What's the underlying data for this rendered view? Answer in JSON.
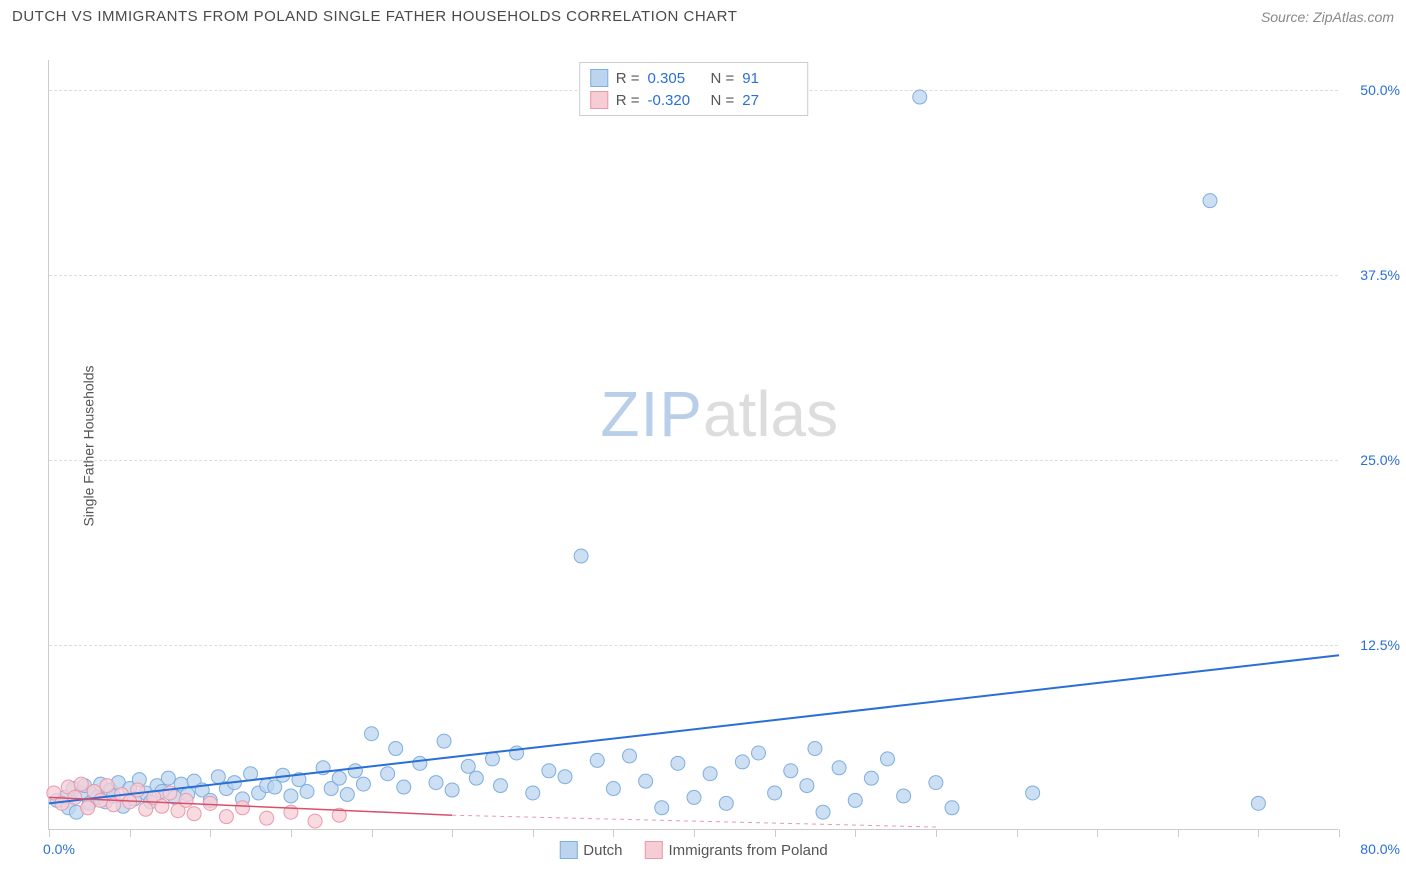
{
  "header": {
    "title": "DUTCH VS IMMIGRANTS FROM POLAND SINGLE FATHER HOUSEHOLDS CORRELATION CHART",
    "source": "Source: ZipAtlas.com"
  },
  "watermark": {
    "part1": "ZIP",
    "part2": "atlas"
  },
  "chart": {
    "type": "scatter",
    "ylabel": "Single Father Households",
    "background_color": "#ffffff",
    "grid_color": "#dddddd",
    "axis_color": "#cccccc",
    "xlim": [
      0,
      80
    ],
    "ylim": [
      0,
      52
    ],
    "x_axis": {
      "min_label": "0.0%",
      "max_label": "80.0%",
      "min_color": "#2a6fd6",
      "max_color": "#2a6fd6",
      "tick_positions": [
        0,
        5,
        10,
        15,
        20,
        25,
        30,
        35,
        40,
        45,
        50,
        55,
        60,
        65,
        70,
        75,
        80
      ]
    },
    "y_axis": {
      "ticks": [
        {
          "v": 12.5,
          "label": "12.5%",
          "color": "#2a6fd6"
        },
        {
          "v": 25.0,
          "label": "25.0%",
          "color": "#2a6fd6"
        },
        {
          "v": 37.5,
          "label": "37.5%",
          "color": "#2a6fd6"
        },
        {
          "v": 50.0,
          "label": "50.0%",
          "color": "#2a6fd6"
        }
      ]
    },
    "series": [
      {
        "name": "Dutch",
        "marker_fill": "#bcd4ee",
        "marker_stroke": "#7faee0",
        "marker_radius": 7,
        "marker_opacity": 0.75,
        "trend": {
          "x1": 0,
          "y1": 1.8,
          "x2": 80,
          "y2": 11.8,
          "color": "#2a6fd6",
          "width": 2,
          "dash": "none"
        },
        "R": "0.305",
        "N": "91",
        "points": [
          [
            0.5,
            2.0
          ],
          [
            1.0,
            2.2
          ],
          [
            1.2,
            1.5
          ],
          [
            1.5,
            2.8
          ],
          [
            1.7,
            1.2
          ],
          [
            2.0,
            2.5
          ],
          [
            2.2,
            3.0
          ],
          [
            2.5,
            1.8
          ],
          [
            2.8,
            2.6
          ],
          [
            3.0,
            2.2
          ],
          [
            3.2,
            3.1
          ],
          [
            3.5,
            1.9
          ],
          [
            3.8,
            2.7
          ],
          [
            4.0,
            2.3
          ],
          [
            4.3,
            3.2
          ],
          [
            4.6,
            1.6
          ],
          [
            5.0,
            2.8
          ],
          [
            5.3,
            2.1
          ],
          [
            5.6,
            3.4
          ],
          [
            6.0,
            2.5
          ],
          [
            6.3,
            1.9
          ],
          [
            6.7,
            3.0
          ],
          [
            7.0,
            2.6
          ],
          [
            7.4,
            3.5
          ],
          [
            7.8,
            2.2
          ],
          [
            8.2,
            3.1
          ],
          [
            8.6,
            2.4
          ],
          [
            9.0,
            3.3
          ],
          [
            9.5,
            2.7
          ],
          [
            10.0,
            2.0
          ],
          [
            10.5,
            3.6
          ],
          [
            11.0,
            2.8
          ],
          [
            11.5,
            3.2
          ],
          [
            12.0,
            2.1
          ],
          [
            12.5,
            3.8
          ],
          [
            13.0,
            2.5
          ],
          [
            13.5,
            3.0
          ],
          [
            14.0,
            2.9
          ],
          [
            14.5,
            3.7
          ],
          [
            15.0,
            2.3
          ],
          [
            15.5,
            3.4
          ],
          [
            16.0,
            2.6
          ],
          [
            17.0,
            4.2
          ],
          [
            17.5,
            2.8
          ],
          [
            18.0,
            3.5
          ],
          [
            18.5,
            2.4
          ],
          [
            19.0,
            4.0
          ],
          [
            19.5,
            3.1
          ],
          [
            20.0,
            6.5
          ],
          [
            21.0,
            3.8
          ],
          [
            21.5,
            5.5
          ],
          [
            22.0,
            2.9
          ],
          [
            23.0,
            4.5
          ],
          [
            24.0,
            3.2
          ],
          [
            24.5,
            6.0
          ],
          [
            25.0,
            2.7
          ],
          [
            26.0,
            4.3
          ],
          [
            26.5,
            3.5
          ],
          [
            27.5,
            4.8
          ],
          [
            28.0,
            3.0
          ],
          [
            29.0,
            5.2
          ],
          [
            30.0,
            2.5
          ],
          [
            31.0,
            4.0
          ],
          [
            32.0,
            3.6
          ],
          [
            33.0,
            18.5
          ],
          [
            34.0,
            4.7
          ],
          [
            35.0,
            2.8
          ],
          [
            36.0,
            5.0
          ],
          [
            37.0,
            3.3
          ],
          [
            38.0,
            1.5
          ],
          [
            39.0,
            4.5
          ],
          [
            40.0,
            2.2
          ],
          [
            41.0,
            3.8
          ],
          [
            42.0,
            1.8
          ],
          [
            43.0,
            4.6
          ],
          [
            44.0,
            5.2
          ],
          [
            45.0,
            2.5
          ],
          [
            46.0,
            4.0
          ],
          [
            47.0,
            3.0
          ],
          [
            47.5,
            5.5
          ],
          [
            48.0,
            1.2
          ],
          [
            49.0,
            4.2
          ],
          [
            50.0,
            2.0
          ],
          [
            51.0,
            3.5
          ],
          [
            52.0,
            4.8
          ],
          [
            53.0,
            2.3
          ],
          [
            54.0,
            49.5
          ],
          [
            55.0,
            3.2
          ],
          [
            56.0,
            1.5
          ],
          [
            61.0,
            2.5
          ],
          [
            72.0,
            42.5
          ],
          [
            75.0,
            1.8
          ]
        ]
      },
      {
        "name": "Immigrants from Poland",
        "marker_fill": "#f7cdd5",
        "marker_stroke": "#e99aac",
        "marker_radius": 7,
        "marker_opacity": 0.75,
        "trend": {
          "x1": 0,
          "y1": 2.2,
          "x2": 25,
          "y2": 1.0,
          "color": "#d94f6a",
          "width": 1.5,
          "dash": "none"
        },
        "trend_ext": {
          "x1": 25,
          "y1": 1.0,
          "x2": 55,
          "y2": 0.2,
          "color": "#e99aac",
          "width": 1,
          "dash": "4,4"
        },
        "R": "-0.320",
        "N": "27",
        "points": [
          [
            0.3,
            2.5
          ],
          [
            0.8,
            1.8
          ],
          [
            1.2,
            2.9
          ],
          [
            1.6,
            2.2
          ],
          [
            2.0,
            3.1
          ],
          [
            2.4,
            1.5
          ],
          [
            2.8,
            2.6
          ],
          [
            3.2,
            2.0
          ],
          [
            3.6,
            3.0
          ],
          [
            4.0,
            1.7
          ],
          [
            4.5,
            2.4
          ],
          [
            5.0,
            1.9
          ],
          [
            5.5,
            2.7
          ],
          [
            6.0,
            1.4
          ],
          [
            6.5,
            2.2
          ],
          [
            7.0,
            1.6
          ],
          [
            7.5,
            2.5
          ],
          [
            8.0,
            1.3
          ],
          [
            8.5,
            2.0
          ],
          [
            9.0,
            1.1
          ],
          [
            10.0,
            1.8
          ],
          [
            11.0,
            0.9
          ],
          [
            12.0,
            1.5
          ],
          [
            13.5,
            0.8
          ],
          [
            15.0,
            1.2
          ],
          [
            16.5,
            0.6
          ],
          [
            18.0,
            1.0
          ]
        ]
      }
    ],
    "stats_legend": {
      "R_label": "R =",
      "N_label": "N =",
      "value_color": "#2a6fd6",
      "label_color": "#555555"
    }
  }
}
